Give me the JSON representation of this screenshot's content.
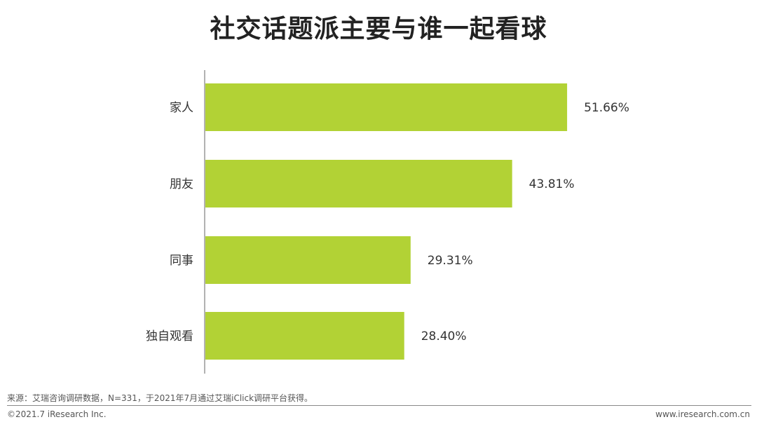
{
  "chart_data": {
    "type": "bar",
    "orientation": "horizontal",
    "title": "社交话题派主要与谁一起看球",
    "categories": [
      "家人",
      "朋友",
      "同事",
      "独自观看"
    ],
    "values": [
      51.66,
      43.81,
      29.31,
      28.4
    ],
    "value_labels": [
      "51.66%",
      "43.81%",
      "29.31%",
      "28.40%"
    ],
    "unit": "%",
    "xlim": [
      0,
      60
    ],
    "grid": false,
    "legend": "none",
    "bar_color": "#b2d235"
  },
  "footer": {
    "source": "来源：艾瑞咨询调研数据，N=331，于2021年7月通过艾瑞iClick调研平台获得。",
    "copyright": "©2021.7 iResearch Inc.",
    "website": "www.iresearch.com.cn"
  }
}
